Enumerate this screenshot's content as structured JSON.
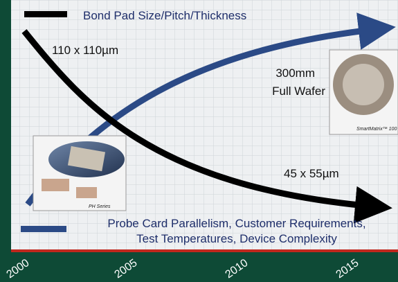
{
  "legend": {
    "bond_pad": "Bond Pad Size/Pitch/Thickness",
    "probe_card": [
      "Probe Card Parallelism, Customer Requirements,",
      "Test Temperatures, Device Complexity"
    ]
  },
  "annotations": {
    "start_size": "110 x 110µm",
    "wafer": [
      "300mm",
      "Full Wafer"
    ],
    "end_size": "45 x 55µm"
  },
  "images": {
    "ph_series": "PH Series",
    "smartmatrix": "SmartMatrix™ 100"
  },
  "timeline": [
    "2000",
    "2005",
    "2010",
    "2015"
  ]
}
